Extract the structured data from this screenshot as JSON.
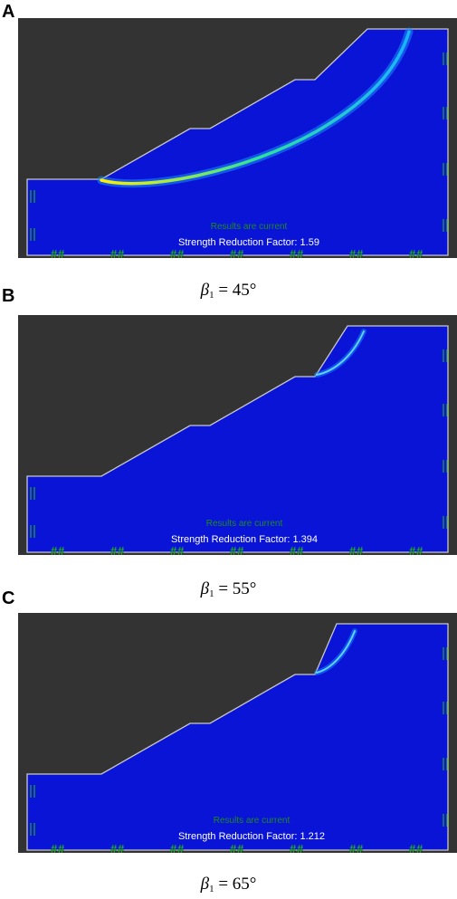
{
  "panels": [
    {
      "letter": "A",
      "status": "Results are current",
      "srf_label": "Strength Reduction Factor: 1.59",
      "caption_symbol": "β",
      "caption_sub": "1",
      "caption_value": " = 45°"
    },
    {
      "letter": "B",
      "status": "Results are current",
      "srf_label": "Strength Reduction Factor: 1.394",
      "caption_symbol": "β",
      "caption_sub": "1",
      "caption_value": " = 55°"
    },
    {
      "letter": "C",
      "status": "Results are current",
      "srf_label": "Strength Reduction Factor: 1.212",
      "caption_symbol": "β",
      "caption_sub": "1",
      "caption_value": " = 65°"
    }
  ],
  "colors": {
    "background": "#333333",
    "model": "#0a14d6",
    "boundary": "#c8c8c8",
    "status_text": "#1e8c1e",
    "srf_text": "#ffffff",
    "support": "#22aa22"
  }
}
